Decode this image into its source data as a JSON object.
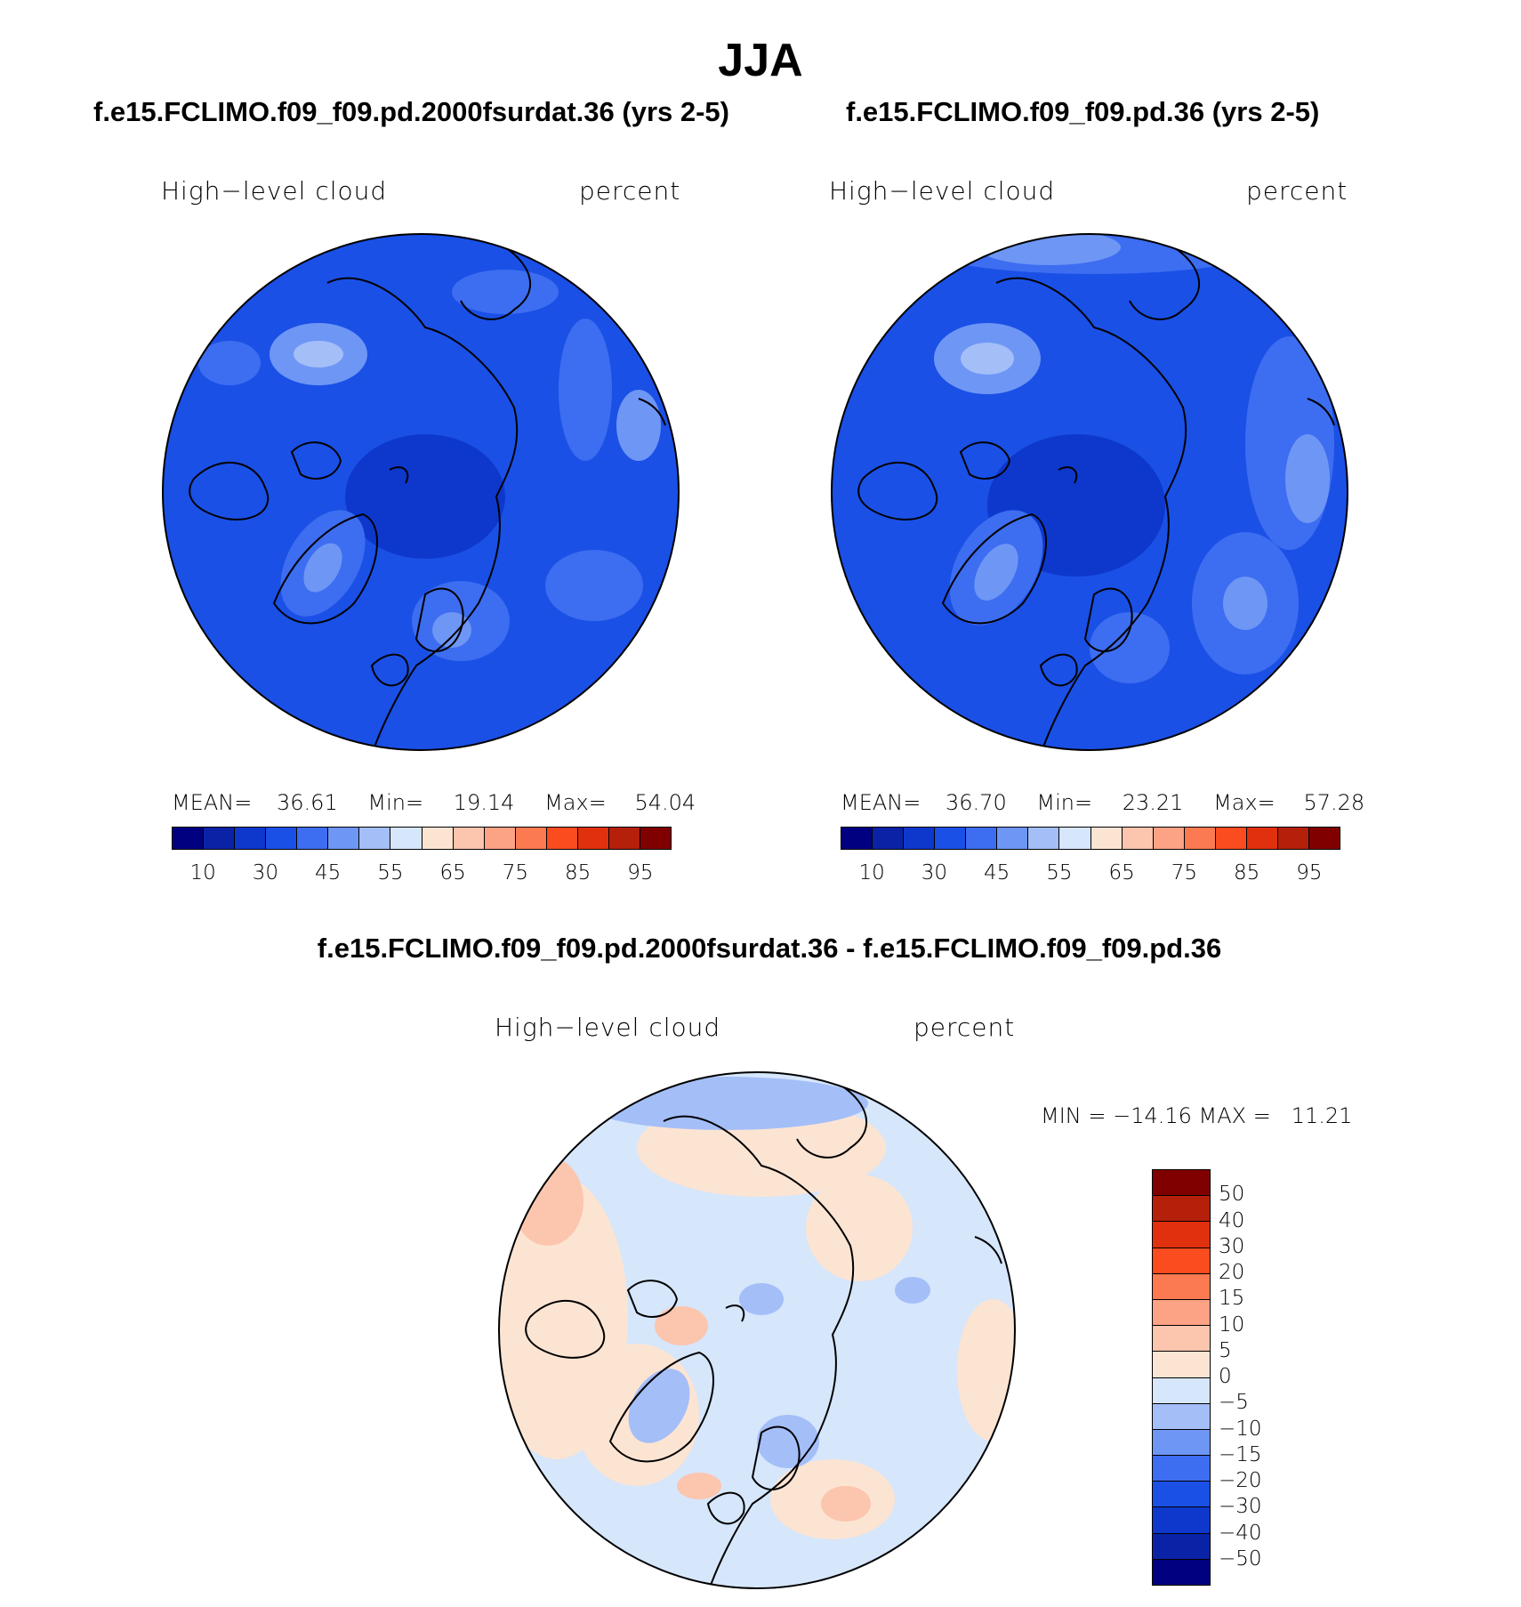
{
  "title": "JJA",
  "panels": [
    {
      "case_title": "f.e15.FCLIMO.f09_f09.pd.2000fsurdat.36 (yrs 2-5)",
      "variable": "High−level cloud",
      "units": "percent",
      "mean_label": "MEAN=",
      "mean_value": "36.61",
      "min_label": "Min=",
      "min_value": "19.14",
      "max_label": "Max=",
      "max_value": "54.04"
    },
    {
      "case_title": "f.e15.FCLIMO.f09_f09.pd.36 (yrs 2-5)",
      "variable": "High−level cloud",
      "units": "percent",
      "mean_label": "MEAN=",
      "mean_value": "36.70",
      "min_label": "Min=",
      "min_value": "23.21",
      "max_label": "Max=",
      "max_value": "57.28"
    }
  ],
  "colorbar_abs": {
    "colors": [
      "#000080",
      "#0a23a6",
      "#0e38cc",
      "#1a50e6",
      "#3d6df0",
      "#6e96f5",
      "#a4bef8",
      "#d6e6fb",
      "#fce4d3",
      "#fcc5ad",
      "#fca285",
      "#fc7a52",
      "#fa4c1e",
      "#e0300d",
      "#b5200b",
      "#800000"
    ],
    "ticks": [
      "10",
      "30",
      "45",
      "55",
      "65",
      "75",
      "85",
      "95"
    ]
  },
  "diff": {
    "title": "f.e15.FCLIMO.f09_f09.pd.2000fsurdat.36 - f.e15.FCLIMO.f09_f09.pd.36",
    "variable": "High−level cloud",
    "units": "percent",
    "minmax_text": "MIN = −14.16 MAX =   11.21",
    "colorbar": {
      "colors": [
        "#800000",
        "#b5200b",
        "#e0300d",
        "#fa4c1e",
        "#fc7a52",
        "#fca285",
        "#fcc5ad",
        "#fce4d3",
        "#d6e6fb",
        "#a4bef8",
        "#6e96f5",
        "#3d6df0",
        "#1a50e6",
        "#0e38cc",
        "#0a23a6",
        "#000080"
      ],
      "ticks": [
        "50",
        "40",
        "30",
        "20",
        "15",
        "10",
        "5",
        "0",
        "−5",
        "−10",
        "−15",
        "−20",
        "−30",
        "−40",
        "−50"
      ]
    }
  }
}
